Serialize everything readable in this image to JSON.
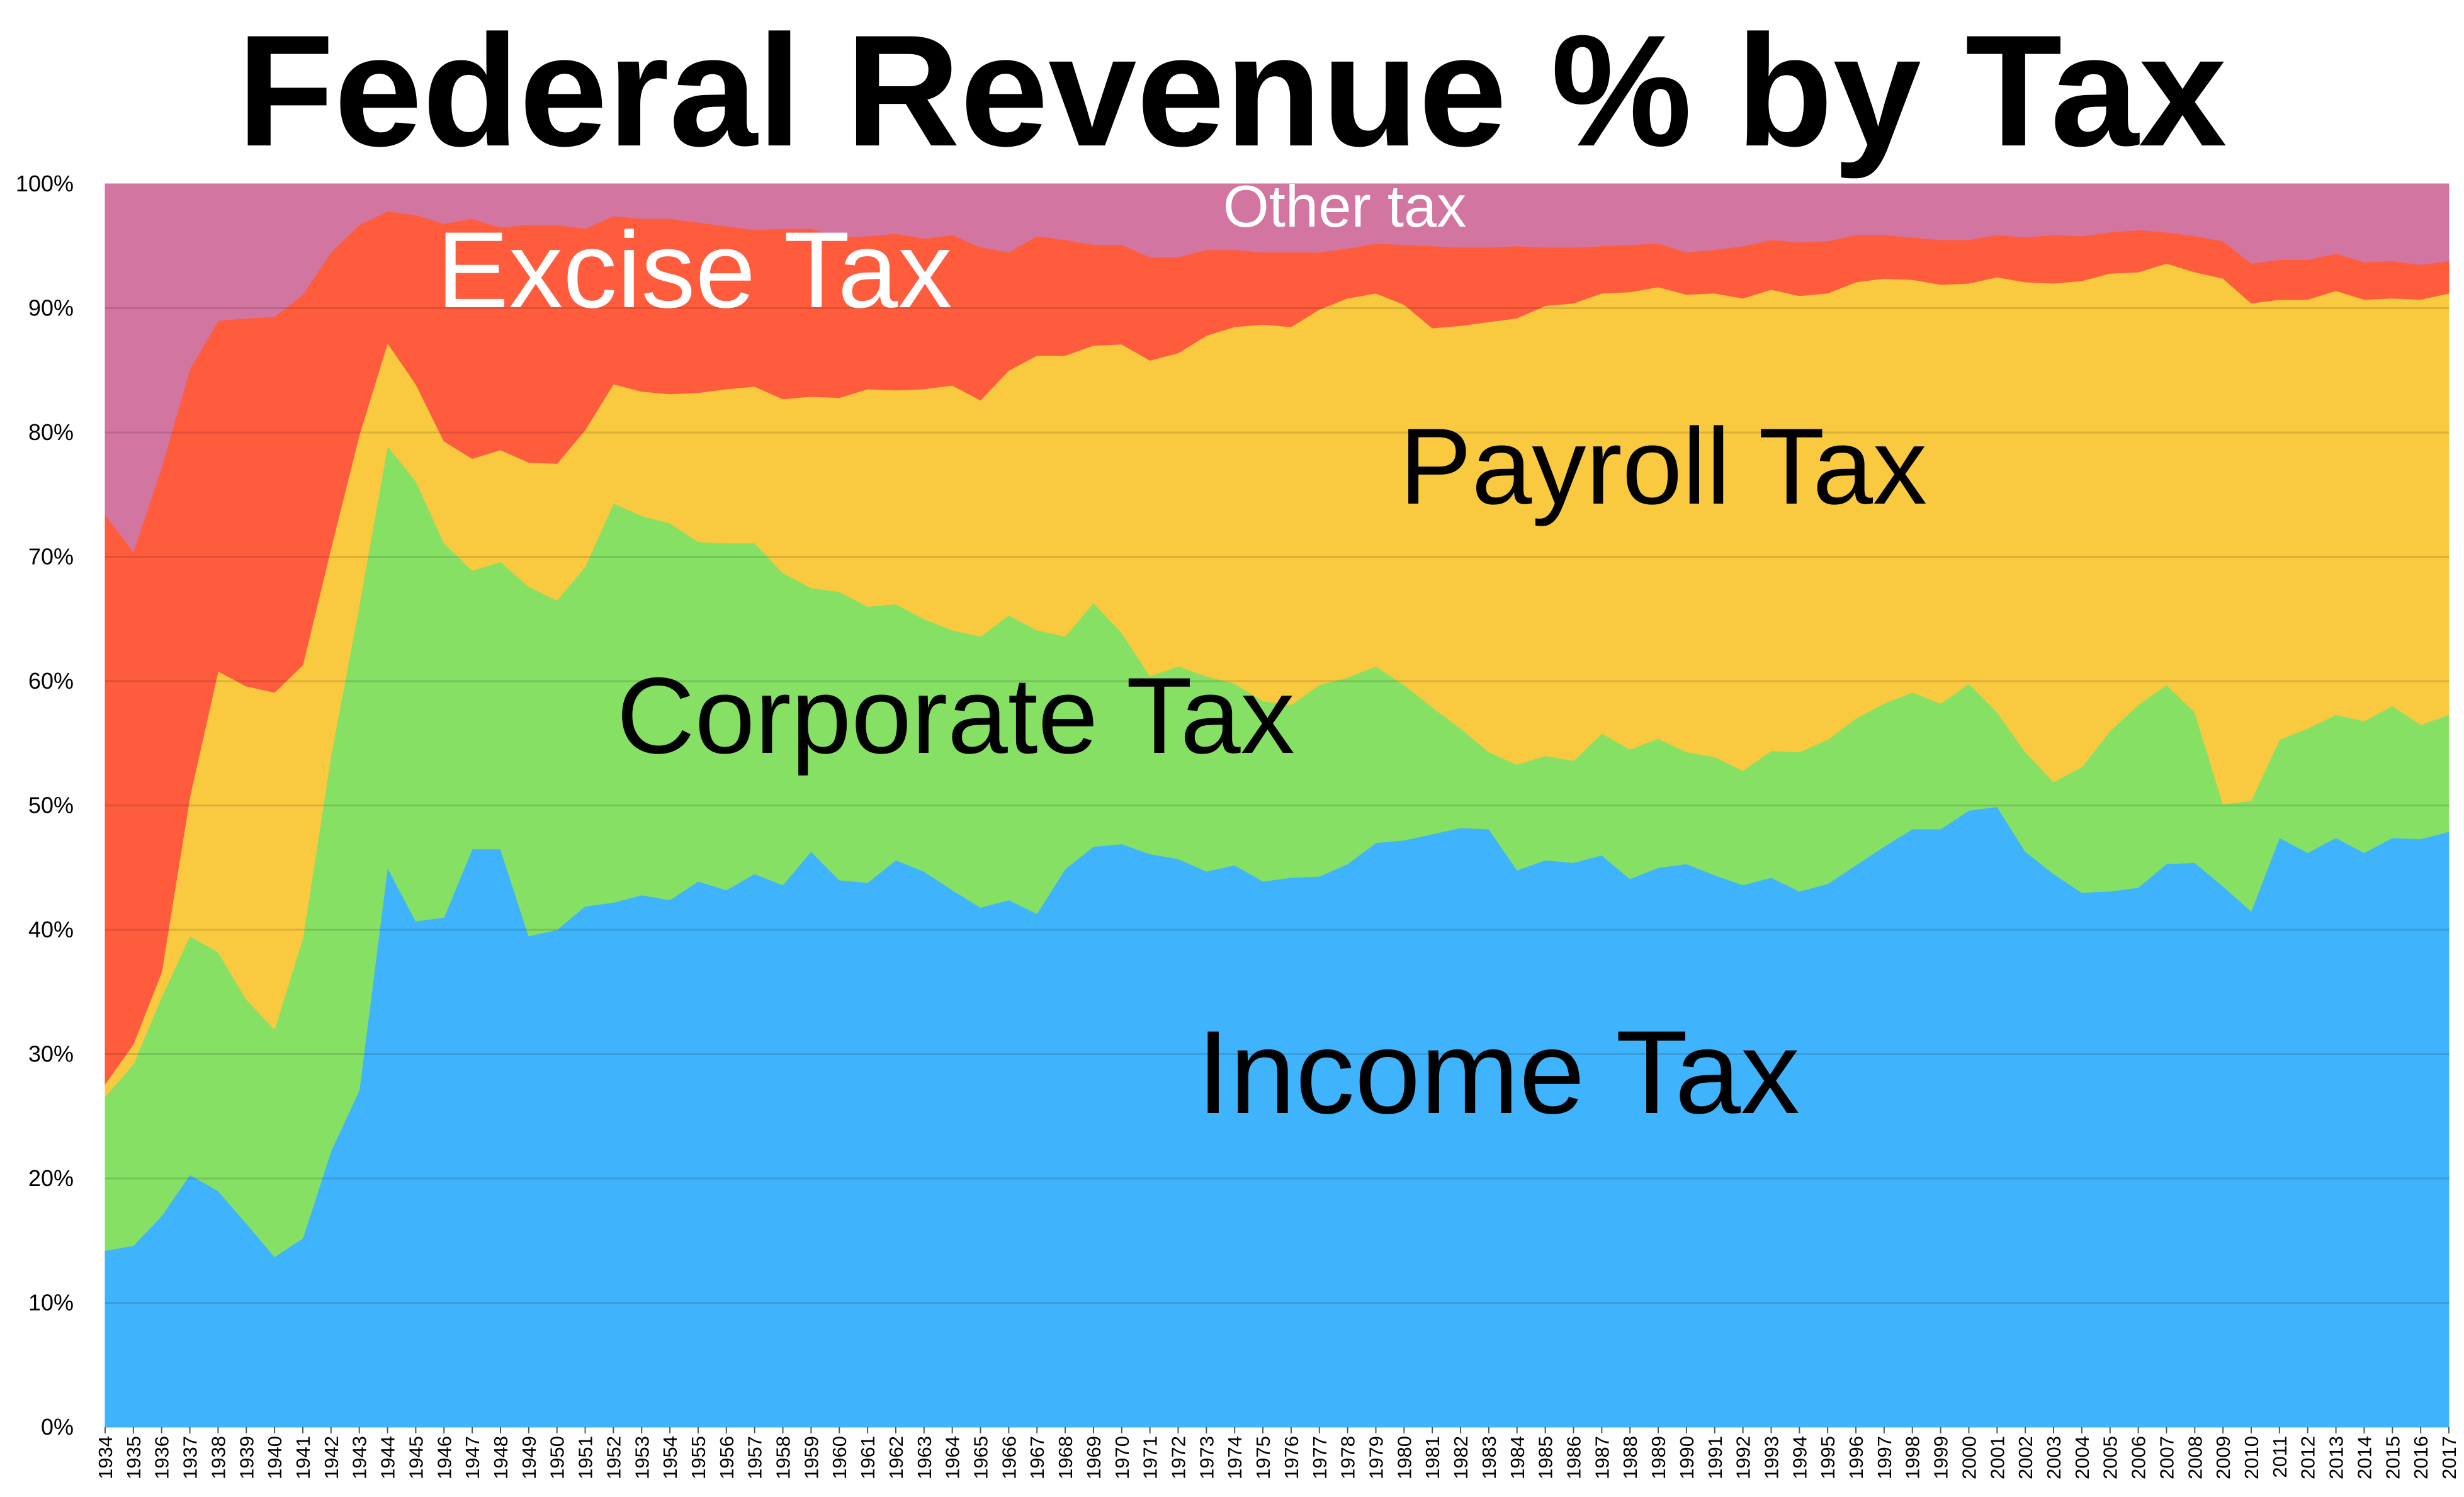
{
  "chart_data": {
    "type": "area",
    "stacked": true,
    "normalized": true,
    "title": "Federal Revenue % by Tax",
    "xlabel": "",
    "ylabel": "",
    "ylim": [
      0,
      100
    ],
    "grid": true,
    "legend": "inline labels",
    "y_ticks": [
      "0%",
      "10%",
      "20%",
      "30%",
      "40%",
      "50%",
      "60%",
      "70%",
      "80%",
      "90%",
      "100%"
    ],
    "x": [
      1934,
      1935,
      1936,
      1937,
      1938,
      1939,
      1940,
      1941,
      1942,
      1943,
      1944,
      1945,
      1946,
      1947,
      1948,
      1949,
      1950,
      1951,
      1952,
      1953,
      1954,
      1955,
      1956,
      1957,
      1958,
      1959,
      1960,
      1961,
      1962,
      1963,
      1964,
      1965,
      1966,
      1967,
      1968,
      1969,
      1970,
      1971,
      1972,
      1973,
      1974,
      1975,
      1976,
      1977,
      1978,
      1979,
      1980,
      1981,
      1982,
      1983,
      1984,
      1985,
      1986,
      1987,
      1988,
      1989,
      1990,
      1991,
      1992,
      1993,
      1994,
      1995,
      1996,
      1997,
      1998,
      1999,
      2000,
      2001,
      2002,
      2003,
      2004,
      2005,
      2006,
      2007,
      2008,
      2009,
      2010,
      2011,
      2012,
      2013,
      2014,
      2015,
      2016,
      2017
    ],
    "series": [
      {
        "name": "Income Tax",
        "color": "#3fb3fb",
        "label_color": "#000000",
        "values": [
          14.2,
          14.6,
          17.0,
          20.3,
          19.0,
          16.4,
          13.7,
          15.2,
          22.2,
          27.1,
          45.0,
          40.7,
          41.0,
          46.5,
          46.5,
          39.5,
          40.0,
          41.9,
          42.2,
          42.8,
          42.4,
          43.9,
          43.2,
          44.5,
          43.6,
          46.3,
          44.0,
          43.8,
          45.6,
          44.7,
          43.2,
          41.8,
          42.4,
          41.3,
          44.9,
          46.7,
          46.9,
          46.1,
          45.7,
          44.7,
          45.2,
          43.9,
          44.2,
          44.3,
          45.3,
          47.0,
          47.2,
          47.7,
          48.2,
          48.1,
          44.8,
          45.6,
          45.4,
          46.0,
          44.1,
          45.0,
          45.3,
          44.4,
          43.6,
          44.2,
          43.1,
          43.7,
          45.2,
          46.7,
          48.1,
          48.1,
          49.6,
          49.9,
          46.3,
          44.5,
          43.0,
          43.1,
          43.4,
          45.3,
          45.4,
          43.5,
          41.5,
          47.4,
          46.2,
          47.4,
          46.2,
          47.4,
          47.3,
          47.9
        ]
      },
      {
        "name": "Corporate Tax",
        "color": "#86e064",
        "label_color": "#000000",
        "values": [
          12.4,
          14.6,
          17.6,
          19.2,
          19.2,
          18.0,
          18.3,
          24.1,
          31.8,
          39.0,
          33.9,
          35.4,
          30.1,
          22.4,
          23.1,
          28.1,
          26.5,
          27.3,
          32.1,
          30.5,
          30.3,
          27.3,
          27.9,
          26.6,
          25.1,
          21.2,
          23.2,
          22.2,
          20.6,
          20.3,
          20.9,
          21.8,
          22.9,
          22.8,
          18.7,
          19.6,
          17.0,
          14.3,
          15.5,
          15.7,
          14.6,
          14.5,
          13.9,
          15.4,
          15.0,
          14.2,
          12.5,
          10.2,
          8.0,
          6.2,
          8.5,
          8.4,
          8.2,
          9.8,
          10.4,
          10.4,
          9.0,
          9.5,
          9.2,
          10.2,
          11.2,
          11.6,
          11.8,
          11.5,
          11.0,
          10.1,
          10.2,
          7.6,
          8.0,
          7.4,
          10.1,
          12.9,
          14.7,
          14.4,
          12.1,
          6.6,
          8.9,
          7.9,
          10.0,
          9.9,
          10.6,
          10.6,
          9.2,
          9.4
        ]
      },
      {
        "name": "Payroll Tax",
        "color": "#f9c940",
        "label_color": "#000000",
        "values": [
          1.0,
          1.6,
          2.0,
          11.2,
          22.6,
          25.2,
          27.1,
          22.0,
          16.7,
          13.7,
          8.3,
          7.8,
          8.2,
          9.0,
          9.0,
          10.0,
          11.0,
          11.0,
          9.6,
          10.0,
          10.4,
          12.0,
          12.4,
          12.6,
          14.0,
          15.4,
          15.6,
          17.5,
          17.2,
          18.5,
          19.7,
          19.0,
          19.7,
          22.1,
          22.6,
          20.7,
          23.2,
          25.4,
          25.2,
          27.4,
          28.7,
          30.3,
          30.4,
          30.2,
          30.5,
          30.0,
          30.6,
          30.5,
          32.4,
          34.6,
          35.9,
          36.2,
          36.8,
          35.4,
          36.8,
          36.3,
          36.8,
          37.3,
          38.0,
          37.1,
          36.7,
          35.9,
          35.1,
          34.2,
          33.2,
          33.7,
          32.2,
          35.0,
          37.8,
          40.1,
          39.1,
          36.8,
          34.8,
          33.9,
          35.4,
          42.3,
          40.0,
          35.4,
          34.5,
          34.1,
          33.9,
          32.8,
          34.2,
          33.9
        ]
      },
      {
        "name": "Excise Tax",
        "color": "#ff5c3e",
        "label_color": "#ffffff",
        "values": [
          45.8,
          39.6,
          40.6,
          34.4,
          28.2,
          29.6,
          30.2,
          29.8,
          23.8,
          16.9,
          10.6,
          13.6,
          17.5,
          19.3,
          17.9,
          19.1,
          19.2,
          16.2,
          13.5,
          13.9,
          14.1,
          13.7,
          13.1,
          12.6,
          13.7,
          13.5,
          12.9,
          12.3,
          12.6,
          12.1,
          12.1,
          12.3,
          9.5,
          9.6,
          9.3,
          8.1,
          8.0,
          8.3,
          7.7,
          6.9,
          6.2,
          5.8,
          6.0,
          4.6,
          4.0,
          4.0,
          4.8,
          6.6,
          6.3,
          6.0,
          5.8,
          4.7,
          4.5,
          3.8,
          3.8,
          3.5,
          3.4,
          3.5,
          4.2,
          4.0,
          4.3,
          4.2,
          3.8,
          3.5,
          3.4,
          3.6,
          3.5,
          3.4,
          3.6,
          3.9,
          3.6,
          3.3,
          3.4,
          2.5,
          2.9,
          3.0,
          3.2,
          3.2,
          3.2,
          3.0,
          3.0,
          3.0,
          2.8,
          2.6
        ]
      },
      {
        "name": "Other tax",
        "color": "#d275a1",
        "label_color": "#ffffff",
        "values": [
          26.6,
          29.6,
          22.8,
          14.9,
          11.0,
          10.8,
          10.7,
          8.9,
          5.5,
          3.3,
          2.2,
          2.5,
          3.2,
          2.8,
          3.5,
          3.3,
          3.3,
          3.6,
          2.6,
          2.8,
          2.8,
          3.1,
          3.4,
          3.7,
          3.6,
          3.6,
          4.3,
          4.2,
          4.0,
          4.4,
          4.1,
          5.1,
          5.5,
          4.2,
          4.5,
          4.9,
          4.9,
          5.9,
          5.9,
          5.3,
          5.3,
          5.5,
          5.5,
          5.5,
          5.2,
          4.8,
          4.9,
          5.0,
          5.1,
          5.1,
          5.0,
          5.1,
          5.1,
          5.0,
          4.9,
          4.8,
          5.5,
          5.3,
          5.0,
          4.5,
          4.7,
          4.6,
          4.1,
          4.1,
          4.3,
          4.5,
          4.5,
          4.1,
          4.3,
          4.1,
          4.2,
          3.9,
          3.7,
          3.9,
          4.2,
          4.6,
          6.4,
          6.1,
          6.1,
          5.6,
          6.3,
          6.2,
          6.5,
          6.2
        ]
      }
    ]
  }
}
